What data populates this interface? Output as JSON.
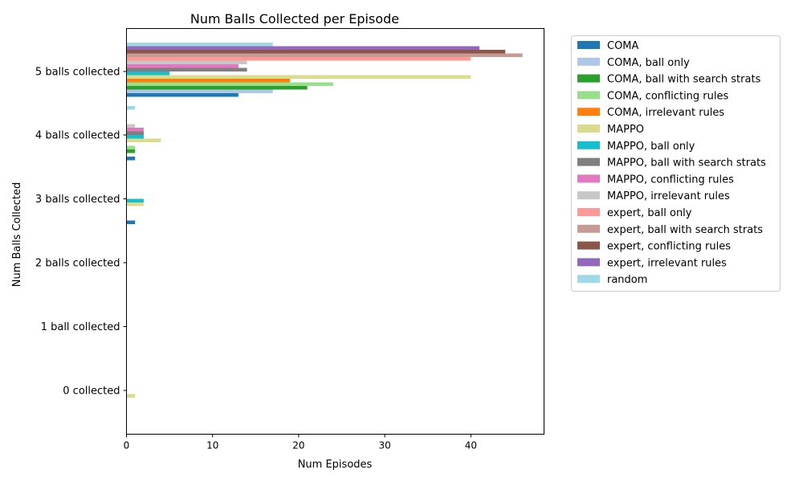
{
  "chart_data": {
    "type": "bar",
    "orientation": "horizontal",
    "title": "Num Balls Collected per Episode",
    "xlabel": "Num Episodes",
    "ylabel": "Num Balls Collected",
    "xlim": [
      0,
      48.5
    ],
    "xticks": [
      0,
      10,
      20,
      30,
      40
    ],
    "grid": false,
    "legend_position": "outside-right",
    "categories": [
      "0 collected",
      "1 ball collected",
      "2 balls collected",
      "3 balls collected",
      "4 balls collected",
      "5 balls collected"
    ],
    "series": [
      {
        "name": "COMA",
        "color": "#1f77b4",
        "values": [
          0,
          0,
          0,
          1,
          1,
          13
        ]
      },
      {
        "name": "COMA, ball only",
        "color": "#aec7e8",
        "values": [
          0,
          0,
          0,
          0,
          0,
          17
        ]
      },
      {
        "name": "COMA, ball with search strats",
        "color": "#2ca02c",
        "values": [
          0,
          0,
          0,
          0,
          1,
          21
        ]
      },
      {
        "name": "COMA, conflicting rules",
        "color": "#98df8a",
        "values": [
          0,
          0,
          0,
          0,
          1,
          24
        ]
      },
      {
        "name": "COMA, irrelevant rules",
        "color": "#ff7f0e",
        "values": [
          0,
          0,
          0,
          0,
          0,
          19
        ]
      },
      {
        "name": "MAPPO",
        "color": "#dbdb8d",
        "values": [
          1,
          0,
          0,
          2,
          4,
          40
        ]
      },
      {
        "name": "MAPPO, ball only",
        "color": "#17becf",
        "values": [
          0,
          0,
          0,
          2,
          2,
          5
        ]
      },
      {
        "name": "MAPPO, ball with search strats",
        "color": "#7f7f7f",
        "values": [
          0,
          0,
          0,
          0,
          2,
          14
        ]
      },
      {
        "name": "MAPPO, conflicting rules",
        "color": "#e377c2",
        "values": [
          0,
          0,
          0,
          0,
          2,
          13
        ]
      },
      {
        "name": "MAPPO, irrelevant rules",
        "color": "#c7c7c7",
        "values": [
          0,
          0,
          0,
          0,
          1,
          14
        ]
      },
      {
        "name": "expert, ball only",
        "color": "#ff9896",
        "values": [
          0,
          0,
          0,
          0,
          0,
          40
        ]
      },
      {
        "name": "expert, ball with search strats",
        "color": "#c49c94",
        "values": [
          0,
          0,
          0,
          0,
          0,
          46
        ]
      },
      {
        "name": "expert, conflicting rules",
        "color": "#8c564b",
        "values": [
          0,
          0,
          0,
          0,
          0,
          44
        ]
      },
      {
        "name": "expert, irrelevant rules",
        "color": "#9467bd",
        "values": [
          0,
          0,
          0,
          0,
          0,
          41
        ]
      },
      {
        "name": "random",
        "color": "#9edae5",
        "values": [
          0,
          0,
          0,
          0,
          1,
          17
        ]
      }
    ]
  }
}
